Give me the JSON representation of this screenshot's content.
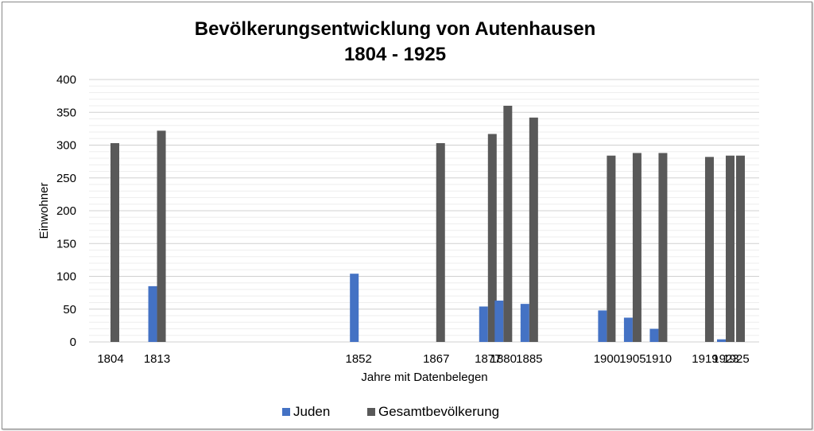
{
  "chart_data": {
    "type": "bar",
    "title": "Bevölkerungsentwicklung von Autenhausen",
    "subtitle": "1804 - 1925",
    "xlabel": "Jahre mit Datenbelegen",
    "ylabel": "Einwohner",
    "ylim": [
      0,
      400
    ],
    "yticks": [
      0,
      50,
      100,
      150,
      200,
      250,
      300,
      350,
      400
    ],
    "grid": true,
    "legend_position": "bottom",
    "categories": [
      "1804",
      "1813",
      "1852",
      "1867",
      "1877",
      "1880",
      "1885",
      "1900",
      "1905",
      "1910",
      "1919",
      "1923",
      "1925"
    ],
    "x": [
      1804,
      1813,
      1852,
      1867,
      1877,
      1880,
      1885,
      1900,
      1905,
      1910,
      1919,
      1923,
      1925
    ],
    "series": [
      {
        "name": "Juden",
        "color": "#4472c4",
        "values": [
          null,
          85,
          104,
          null,
          54,
          63,
          58,
          48,
          37,
          20,
          null,
          4,
          null
        ]
      },
      {
        "name": "Gesamtbevölkerung",
        "color": "#595959",
        "values": [
          303,
          322,
          null,
          303,
          317,
          360,
          342,
          284,
          288,
          288,
          282,
          284,
          284
        ]
      }
    ]
  }
}
